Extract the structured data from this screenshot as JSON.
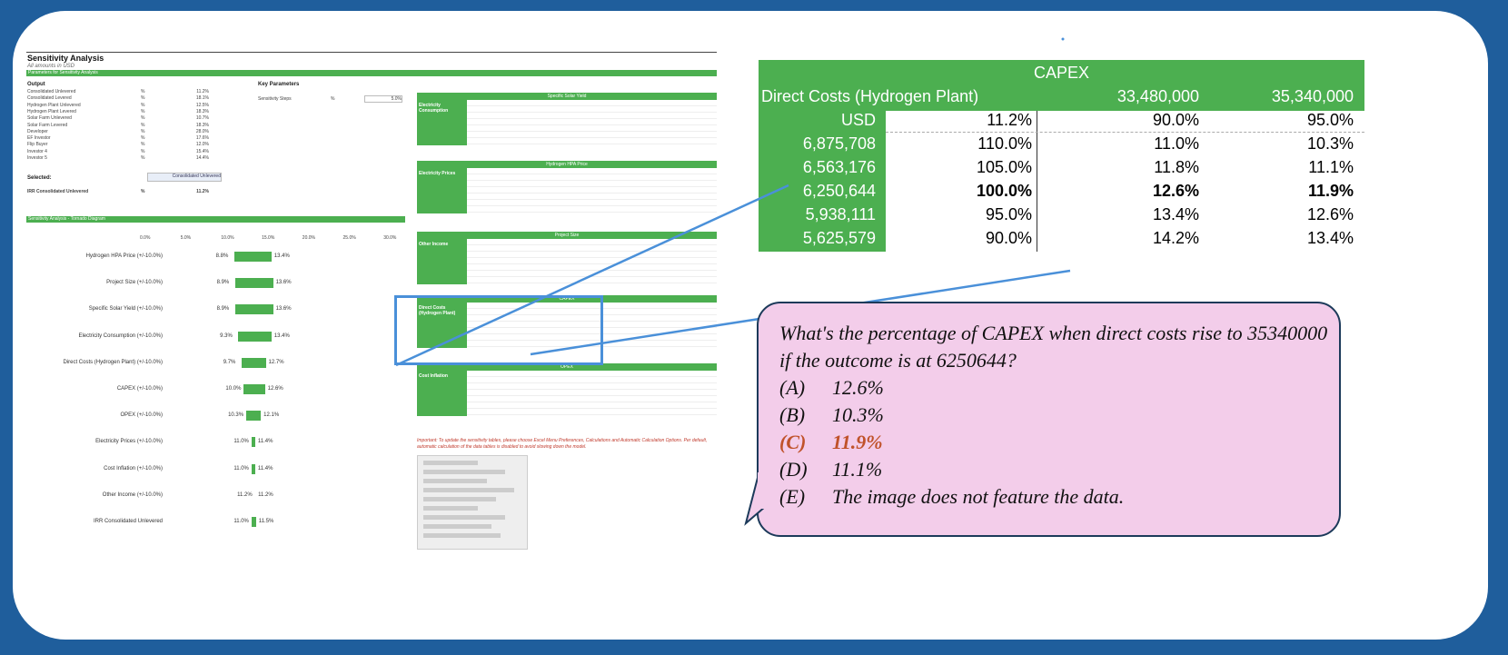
{
  "sheet": {
    "title": "Sensitivity Analysis",
    "subtitle": "All amounts in USD",
    "params_bar": "Parameters for Sensitivity Analysis",
    "output_header": "Output",
    "key_params_header": "Key Parameters",
    "sensitivity_steps_label": "Sensitivity Steps",
    "sensitivity_steps_unit": "%",
    "sensitivity_steps_value": "5.0%",
    "outputs": [
      {
        "name": "Consolidated Unlevered",
        "unit": "%",
        "value": "11.2%"
      },
      {
        "name": "Consolidated Levered",
        "unit": "%",
        "value": "18.1%"
      },
      {
        "name": "Hydrogen Plant Unlevered",
        "unit": "%",
        "value": "12.5%"
      },
      {
        "name": "Hydrogen Plant Levered",
        "unit": "%",
        "value": "18.3%"
      },
      {
        "name": "Solar Farm Unlevered",
        "unit": "%",
        "value": "10.7%"
      },
      {
        "name": "Solar Farm Levered",
        "unit": "%",
        "value": "18.3%"
      },
      {
        "name": "Developer",
        "unit": "%",
        "value": "28.0%"
      },
      {
        "name": "EF Investor",
        "unit": "%",
        "value": "17.6%"
      },
      {
        "name": "Flip Buyer",
        "unit": "%",
        "value": "12.0%"
      },
      {
        "name": "Investor 4",
        "unit": "%",
        "value": "15.4%"
      },
      {
        "name": "Investor 5",
        "unit": "%",
        "value": "14.4%"
      }
    ],
    "selected_label": "Selected:",
    "selected_value": "Consolidated Unlevered",
    "irr_label": "IRR Consolidated Unlevered",
    "irr_unit": "%",
    "irr_value": "11.2%",
    "tornado_bar": "Sensitivity Analysis - Tornado Diagram",
    "tornado_axis": [
      "0.0%",
      "5.0%",
      "10.0%",
      "15.0%",
      "20.0%",
      "25.0%",
      "30.0%"
    ],
    "tornado": [
      {
        "label": "Hydrogen HPA Price (+/-10.0%)",
        "low": 8.8,
        "high": 13.4,
        "low_text": "8.8%",
        "high_text": "13.4%"
      },
      {
        "label": "Project Size (+/-10.0%)",
        "low": 8.9,
        "high": 13.6,
        "low_text": "8.9%",
        "high_text": "13.6%"
      },
      {
        "label": "Specific Solar Yield (+/-10.0%)",
        "low": 8.9,
        "high": 13.6,
        "low_text": "8.9%",
        "high_text": "13.6%"
      },
      {
        "label": "Electricity Consumption (+/-10.0%)",
        "low": 9.3,
        "high": 13.4,
        "low_text": "9.3%",
        "high_text": "13.4%"
      },
      {
        "label": "Direct Costs (Hydrogen Plant) (+/-10.0%)",
        "low": 9.7,
        "high": 12.7,
        "low_text": "9.7%",
        "high_text": "12.7%"
      },
      {
        "label": "CAPEX (+/-10.0%)",
        "low": 10.0,
        "high": 12.6,
        "low_text": "10.0%",
        "high_text": "12.6%"
      },
      {
        "label": "OPEX (+/-10.0%)",
        "low": 10.3,
        "high": 12.1,
        "low_text": "10.3%",
        "high_text": "12.1%"
      },
      {
        "label": "Electricity Prices (+/-10.0%)",
        "low": 11.0,
        "high": 11.4,
        "low_text": "11.0%",
        "high_text": "11.4%"
      },
      {
        "label": "Cost Inflation (+/-10.0%)",
        "low": 11.0,
        "high": 11.4,
        "low_text": "11.0%",
        "high_text": "11.4%"
      },
      {
        "label": "Other Income (+/-10.0%)",
        "low": 11.2,
        "high": 11.2,
        "low_text": "11.2%",
        "high_text": "11.2%"
      },
      {
        "label": "IRR Consolidated Unlevered",
        "low": 11.0,
        "high": 11.5,
        "low_text": "11.0%",
        "high_text": "11.5%"
      }
    ],
    "mini_tables": [
      {
        "header": "Specific Solar Yield",
        "label": "Electricity Consumption"
      },
      {
        "header": "Hydrogen HPA Price",
        "label": "Electricity Prices"
      },
      {
        "header": "Project Size",
        "label": "Other Income"
      },
      {
        "header": "CAPEX",
        "label": "Direct Costs (Hydrogen Plant)"
      },
      {
        "header": "OPEX",
        "label": "Cost Inflation"
      }
    ],
    "note": "Important: To update the sensitivity tables, please choose Excel Menu Preferences, Calculations and Automatic Calculation Options. Per default, automatic calculation of the data tables is disabled to avoid slowing down the model."
  },
  "zoom": {
    "header": "CAPEX",
    "row_label": "Direct Costs (Hydrogen Plant)",
    "col_headers": [
      "33,480,000",
      "35,340,000"
    ],
    "unit_row": {
      "label": "USD",
      "corner": "11.2%",
      "c1": "90.0%",
      "c2": "95.0%"
    },
    "rows": [
      {
        "direct": "6,875,708",
        "pct": "110.0%",
        "c1": "11.0%",
        "c2": "10.3%",
        "bold": false
      },
      {
        "direct": "6,563,176",
        "pct": "105.0%",
        "c1": "11.8%",
        "c2": "11.1%",
        "bold": false
      },
      {
        "direct": "6,250,644",
        "pct": "100.0%",
        "c1": "12.6%",
        "c2": "11.9%",
        "bold": true
      },
      {
        "direct": "5,938,111",
        "pct": "95.0%",
        "c1": "13.4%",
        "c2": "12.6%",
        "bold": false
      },
      {
        "direct": "5,625,579",
        "pct": "90.0%",
        "c1": "14.2%",
        "c2": "13.4%",
        "bold": false
      }
    ]
  },
  "question": {
    "text": "What's the percentage of CAPEX when direct costs rise to 35340000 if the outcome is at 6250644?",
    "options": [
      {
        "key": "(A)",
        "text": "12.6%",
        "correct": false
      },
      {
        "key": "(B)",
        "text": "10.3%",
        "correct": false
      },
      {
        "key": "(C)",
        "text": "11.9%",
        "correct": true
      },
      {
        "key": "(D)",
        "text": "11.1%",
        "correct": false
      },
      {
        "key": "(E)",
        "text": "The image does not feature the data.",
        "correct": false
      }
    ]
  },
  "colors": {
    "green": "#4caf50",
    "frame": "#1f5e9c",
    "bubble": "#f3cdea",
    "answer": "#c0522a",
    "highlight": "#4a90d9"
  }
}
